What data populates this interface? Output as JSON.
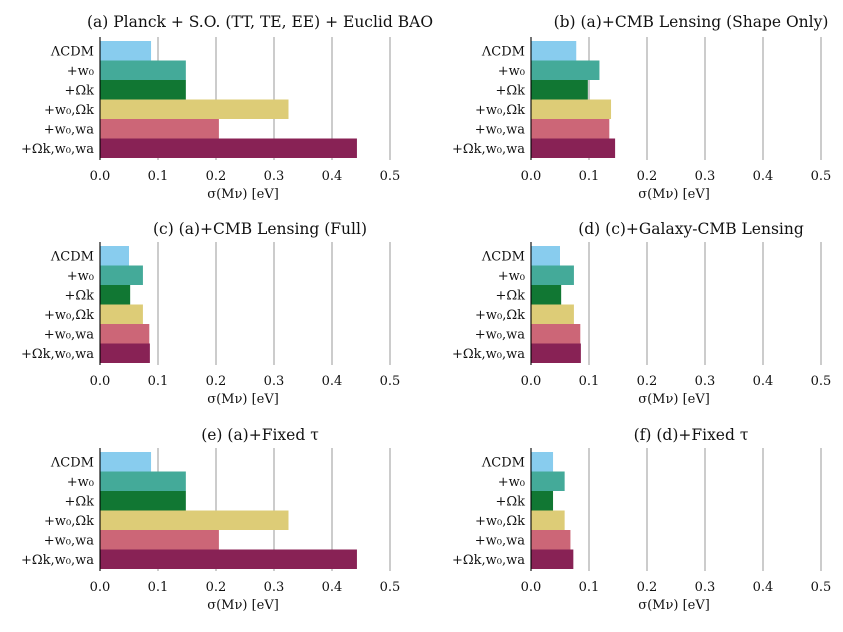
{
  "figure": {
    "xlabel": "σ(Mν) [eV]"
  },
  "chart_data": [
    {
      "type": "bar",
      "orientation": "horizontal",
      "title": "(a) Planck + S.O. (TT, TE, EE) + Euclid BAO",
      "categories": [
        "ΛCDM",
        "+w₀",
        "+Ωk",
        "+w₀,Ωk",
        "+w₀,wa",
        "+Ωk,w₀,wa"
      ],
      "values": [
        0.088,
        0.148,
        0.148,
        0.325,
        0.205,
        0.443
      ],
      "bar_colors": [
        "#88CCEE",
        "#44AA99",
        "#117733",
        "#DDCC77",
        "#CC6677",
        "#882255"
      ],
      "xlabel": "σ(Mν) [eV]",
      "xticks": [
        0.0,
        0.1,
        0.2,
        0.3,
        0.4,
        0.5
      ],
      "xlim": [
        0,
        0.5
      ],
      "grid": "vertical"
    },
    {
      "type": "bar",
      "orientation": "horizontal",
      "title": "(b) (a)+CMB Lensing (Shape Only)",
      "categories": [
        "ΛCDM",
        "+w₀",
        "+Ωk",
        "+w₀,Ωk",
        "+w₀,wa",
        "+Ωk,w₀,wa"
      ],
      "values": [
        0.078,
        0.118,
        0.098,
        0.138,
        0.135,
        0.145
      ],
      "bar_colors": [
        "#88CCEE",
        "#44AA99",
        "#117733",
        "#DDCC77",
        "#CC6677",
        "#882255"
      ],
      "xlabel": "σ(Mν) [eV]",
      "xticks": [
        0.0,
        0.1,
        0.2,
        0.3,
        0.4,
        0.5
      ],
      "xlim": [
        0,
        0.5
      ],
      "grid": "vertical"
    },
    {
      "type": "bar",
      "orientation": "horizontal",
      "title": "(c) (a)+CMB Lensing (Full)",
      "categories": [
        "ΛCDM",
        "+w₀",
        "+Ωk",
        "+w₀,Ωk",
        "+w₀,wa",
        "+Ωk,w₀,wa"
      ],
      "values": [
        0.05,
        0.074,
        0.052,
        0.074,
        0.085,
        0.086
      ],
      "bar_colors": [
        "#88CCEE",
        "#44AA99",
        "#117733",
        "#DDCC77",
        "#CC6677",
        "#882255"
      ],
      "xlabel": "σ(Mν) [eV]",
      "xticks": [
        0.0,
        0.1,
        0.2,
        0.3,
        0.4,
        0.5
      ],
      "xlim": [
        0,
        0.5
      ],
      "grid": "vertical"
    },
    {
      "type": "bar",
      "orientation": "horizontal",
      "title": "(d) (c)+Galaxy-CMB Lensing",
      "categories": [
        "ΛCDM",
        "+w₀",
        "+Ωk",
        "+w₀,Ωk",
        "+w₀,wa",
        "+Ωk,w₀,wa"
      ],
      "values": [
        0.05,
        0.074,
        0.052,
        0.074,
        0.085,
        0.086
      ],
      "bar_colors": [
        "#88CCEE",
        "#44AA99",
        "#117733",
        "#DDCC77",
        "#CC6677",
        "#882255"
      ],
      "xlabel": "σ(Mν) [eV]",
      "xticks": [
        0.0,
        0.1,
        0.2,
        0.3,
        0.4,
        0.5
      ],
      "xlim": [
        0,
        0.5
      ],
      "grid": "vertical"
    },
    {
      "type": "bar",
      "orientation": "horizontal",
      "title": "(e) (a)+Fixed τ",
      "categories": [
        "ΛCDM",
        "+w₀",
        "+Ωk",
        "+w₀,Ωk",
        "+w₀,wa",
        "+Ωk,w₀,wa"
      ],
      "values": [
        0.088,
        0.148,
        0.148,
        0.325,
        0.205,
        0.443
      ],
      "bar_colors": [
        "#88CCEE",
        "#44AA99",
        "#117733",
        "#DDCC77",
        "#CC6677",
        "#882255"
      ],
      "xlabel": "σ(Mν) [eV]",
      "xticks": [
        0.0,
        0.1,
        0.2,
        0.3,
        0.4,
        0.5
      ],
      "xlim": [
        0,
        0.5
      ],
      "grid": "vertical"
    },
    {
      "type": "bar",
      "orientation": "horizontal",
      "title": "(f) (d)+Fixed τ",
      "categories": [
        "ΛCDM",
        "+w₀",
        "+Ωk",
        "+w₀,Ωk",
        "+w₀,wa",
        "+Ωk,w₀,wa"
      ],
      "values": [
        0.038,
        0.058,
        0.038,
        0.058,
        0.068,
        0.073
      ],
      "bar_colors": [
        "#88CCEE",
        "#44AA99",
        "#117733",
        "#DDCC77",
        "#CC6677",
        "#882255"
      ],
      "xlabel": "σ(Mν) [eV]",
      "xticks": [
        0.0,
        0.1,
        0.2,
        0.3,
        0.4,
        0.5
      ],
      "xlim": [
        0,
        0.5
      ],
      "grid": "vertical"
    }
  ]
}
